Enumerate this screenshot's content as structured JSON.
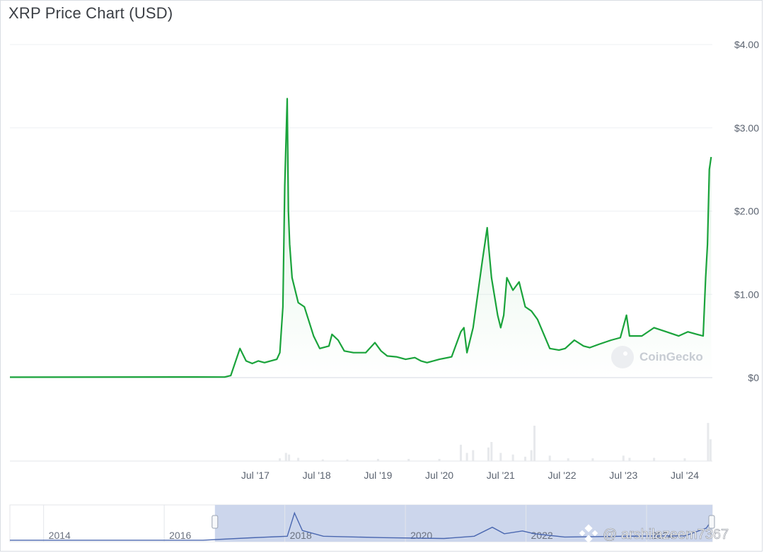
{
  "title": "XRP Price Chart (USD)",
  "chart_data": {
    "type": "line",
    "title": "XRP Price Chart (USD)",
    "xlabel": "",
    "ylabel": "",
    "ylim": [
      0,
      4
    ],
    "y_ticks": [
      {
        "v": 4,
        "label": "$4.00"
      },
      {
        "v": 3,
        "label": "$3.00"
      },
      {
        "v": 2,
        "label": "$2.00"
      },
      {
        "v": 1,
        "label": "$1.00"
      },
      {
        "v": 0,
        "label": "$0"
      }
    ],
    "xlim": [
      2013.5,
      2024.95
    ],
    "x_ticks": [
      {
        "v": 2017.5,
        "label": "Jul '17"
      },
      {
        "v": 2018.5,
        "label": "Jul '18"
      },
      {
        "v": 2019.5,
        "label": "Jul '19"
      },
      {
        "v": 2020.5,
        "label": "Jul '20"
      },
      {
        "v": 2021.5,
        "label": "Jul '21"
      },
      {
        "v": 2022.5,
        "label": "Jul '22"
      },
      {
        "v": 2023.5,
        "label": "Jul '23"
      },
      {
        "v": 2024.5,
        "label": "Jul '24"
      }
    ],
    "grid": true,
    "line_color": "#1aa33b",
    "series": [
      {
        "x": [
          2013.5,
          2016.5,
          2017.0,
          2017.1,
          2017.25,
          2017.35,
          2017.45,
          2017.55,
          2017.65,
          2017.75,
          2017.85,
          2017.9,
          2017.95,
          2017.98,
          2018.02,
          2018.04,
          2018.06,
          2018.1,
          2018.2,
          2018.3,
          2018.45,
          2018.55,
          2018.7,
          2018.75,
          2018.85,
          2018.95,
          2019.1,
          2019.3,
          2019.45,
          2019.55,
          2019.65,
          2019.8,
          2019.95,
          2020.1,
          2020.2,
          2020.3,
          2020.5,
          2020.7,
          2020.85,
          2020.9,
          2020.95,
          2021.05,
          2021.2,
          2021.28,
          2021.3,
          2021.35,
          2021.45,
          2021.5,
          2021.55,
          2021.6,
          2021.7,
          2021.8,
          2021.9,
          2022.0,
          2022.1,
          2022.3,
          2022.45,
          2022.55,
          2022.7,
          2022.85,
          2022.95,
          2023.1,
          2023.3,
          2023.45,
          2023.55,
          2023.6,
          2023.8,
          2024.0,
          2024.2,
          2024.4,
          2024.55,
          2024.7,
          2024.8,
          2024.84,
          2024.87,
          2024.9,
          2024.93
        ],
        "y": [
          0.005,
          0.008,
          0.007,
          0.025,
          0.35,
          0.2,
          0.17,
          0.2,
          0.18,
          0.2,
          0.22,
          0.3,
          0.85,
          2.3,
          3.35,
          2.0,
          1.6,
          1.2,
          0.9,
          0.85,
          0.5,
          0.35,
          0.38,
          0.52,
          0.45,
          0.32,
          0.3,
          0.3,
          0.42,
          0.32,
          0.26,
          0.25,
          0.22,
          0.24,
          0.2,
          0.18,
          0.22,
          0.25,
          0.55,
          0.6,
          0.3,
          0.6,
          1.4,
          1.8,
          1.6,
          1.2,
          0.75,
          0.6,
          0.75,
          1.2,
          1.05,
          1.15,
          0.85,
          0.8,
          0.7,
          0.35,
          0.33,
          0.35,
          0.45,
          0.38,
          0.36,
          0.4,
          0.45,
          0.48,
          0.75,
          0.5,
          0.5,
          0.6,
          0.55,
          0.5,
          0.55,
          0.52,
          0.5,
          1.2,
          1.6,
          2.5,
          2.65
        ]
      }
    ],
    "volume": {
      "x": [
        2017.9,
        2018.0,
        2018.05,
        2018.2,
        2018.6,
        2019.0,
        2019.5,
        2020.0,
        2020.5,
        2020.85,
        2020.95,
        2021.05,
        2021.3,
        2021.35,
        2021.5,
        2021.7,
        2021.9,
        2022.0,
        2022.05,
        2022.3,
        2022.6,
        2023.0,
        2023.5,
        2023.6,
        2024.0,
        2024.5,
        2024.88,
        2024.92
      ],
      "y": [
        0.05,
        0.15,
        0.12,
        0.06,
        0.03,
        0.03,
        0.04,
        0.04,
        0.04,
        0.3,
        0.15,
        0.2,
        0.25,
        0.35,
        0.15,
        0.12,
        0.08,
        0.2,
        0.65,
        0.1,
        0.05,
        0.05,
        0.1,
        0.06,
        0.06,
        0.05,
        0.7,
        0.4
      ]
    },
    "navigator": {
      "x_ticks": [
        {
          "v": 2014,
          "label": "2014"
        },
        {
          "v": 2016,
          "label": "2016"
        },
        {
          "v": 2018,
          "label": "2018"
        },
        {
          "v": 2020,
          "label": "2020"
        },
        {
          "v": 2022,
          "label": "2022"
        },
        {
          "v": 2024,
          "label": "2024"
        }
      ],
      "range": [
        2013.3,
        2024.95
      ],
      "selected": [
        2016.7,
        2024.95
      ],
      "x": [
        2013.3,
        2016.5,
        2017.3,
        2017.9,
        2018.02,
        2018.15,
        2018.5,
        2019.5,
        2020.5,
        2021.0,
        2021.3,
        2021.5,
        2021.8,
        2022.0,
        2022.5,
        2023.5,
        2024.5,
        2024.85,
        2024.95
      ],
      "y": [
        0.005,
        0.008,
        0.3,
        0.5,
        3.35,
        1.2,
        0.5,
        0.32,
        0.22,
        0.5,
        1.6,
        0.8,
        1.15,
        0.8,
        0.4,
        0.5,
        0.55,
        1.5,
        2.6
      ]
    },
    "watermark": "CoinGecko"
  },
  "overlay_watermark": "@ arshilazeem7367"
}
